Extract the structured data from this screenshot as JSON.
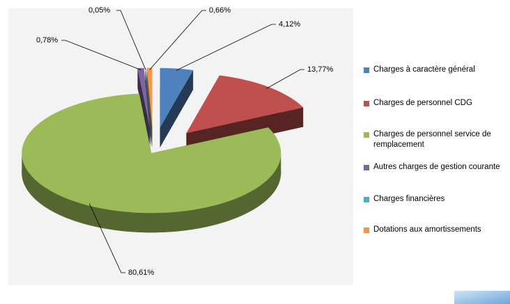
{
  "chart_data": {
    "type": "pie",
    "categories": [
      "Charges à caractère général",
      "Charges de personnel CDG",
      "Charges de personnel service de remplacement",
      "Autres charges de gestion courante",
      "Charges financières",
      "Dotations aux amortissements"
    ],
    "values": [
      4.12,
      13.77,
      80.61,
      0.78,
      0.05,
      0.66
    ],
    "value_labels": [
      "4,12%",
      "13,77%",
      "80,61%",
      "0,78%",
      "0,05%",
      "0,66%"
    ],
    "colors": [
      "#4f81bd",
      "#c0504d",
      "#9bbb59",
      "#8064a2",
      "#4bacc6",
      "#f79646"
    ],
    "legend": "right"
  }
}
